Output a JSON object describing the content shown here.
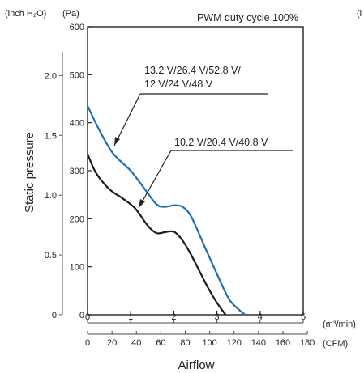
{
  "chart_data": {
    "type": "line",
    "title": "PWM duty cycle 100%",
    "xlabel": "Airflow",
    "ylabel": "Static pressure",
    "units": {
      "x_primary": "(m³/min)",
      "x_secondary": "(CFM)",
      "y_primary": "(Pa)",
      "y_secondary": "(inch H₂O)",
      "right_edge_fragment": "(i"
    },
    "x_axis": {
      "range": [
        0,
        5
      ],
      "ticks": [
        "0",
        "1",
        "2",
        "3",
        "4",
        "5"
      ]
    },
    "x_axis_cfm": {
      "range": [
        0,
        180
      ],
      "ticks": [
        "0",
        "20",
        "40",
        "60",
        "80",
        "100",
        "120",
        "140",
        "160",
        "180"
      ]
    },
    "y_axis": {
      "range": [
        0,
        600
      ],
      "ticks": [
        "0",
        "100",
        "200",
        "300",
        "400",
        "500",
        "600"
      ]
    },
    "y_axis_inch": {
      "ticks": [
        "0",
        "0.5",
        "1.0",
        "1.5",
        "2.0"
      ],
      "values": [
        0,
        0.5,
        1.0,
        1.5,
        2.0
      ]
    },
    "grid": false,
    "series": [
      {
        "annotation": "13.2 V/26.4 V/52.8 V/ 12 V/24 V/48 V",
        "annotation_lines": [
          "13.2 V/26.4 V/52.8 V/",
          "12 V/24 V/48 V"
        ],
        "color": "#1f6fb0",
        "x": [
          0,
          0.3,
          0.6,
          1.0,
          1.3,
          1.6,
          1.8,
          2.0,
          2.2,
          2.4,
          2.7,
          3.0,
          3.3,
          3.65
        ],
        "y": [
          435,
          380,
          335,
          300,
          265,
          230,
          225,
          228,
          225,
          205,
          145,
          85,
          30,
          0
        ]
      },
      {
        "annotation": "10.2 V/20.4 V/40.8 V",
        "annotation_lines": [
          "10.2 V/20.4 V/40.8 V"
        ],
        "color": "#1a1a1a",
        "x": [
          0,
          0.2,
          0.5,
          0.8,
          1.1,
          1.4,
          1.6,
          1.8,
          2.0,
          2.2,
          2.4,
          2.6,
          2.8,
          3.0,
          3.2
        ],
        "y": [
          335,
          295,
          262,
          243,
          222,
          185,
          170,
          172,
          173,
          155,
          125,
          90,
          55,
          25,
          0
        ]
      }
    ]
  }
}
